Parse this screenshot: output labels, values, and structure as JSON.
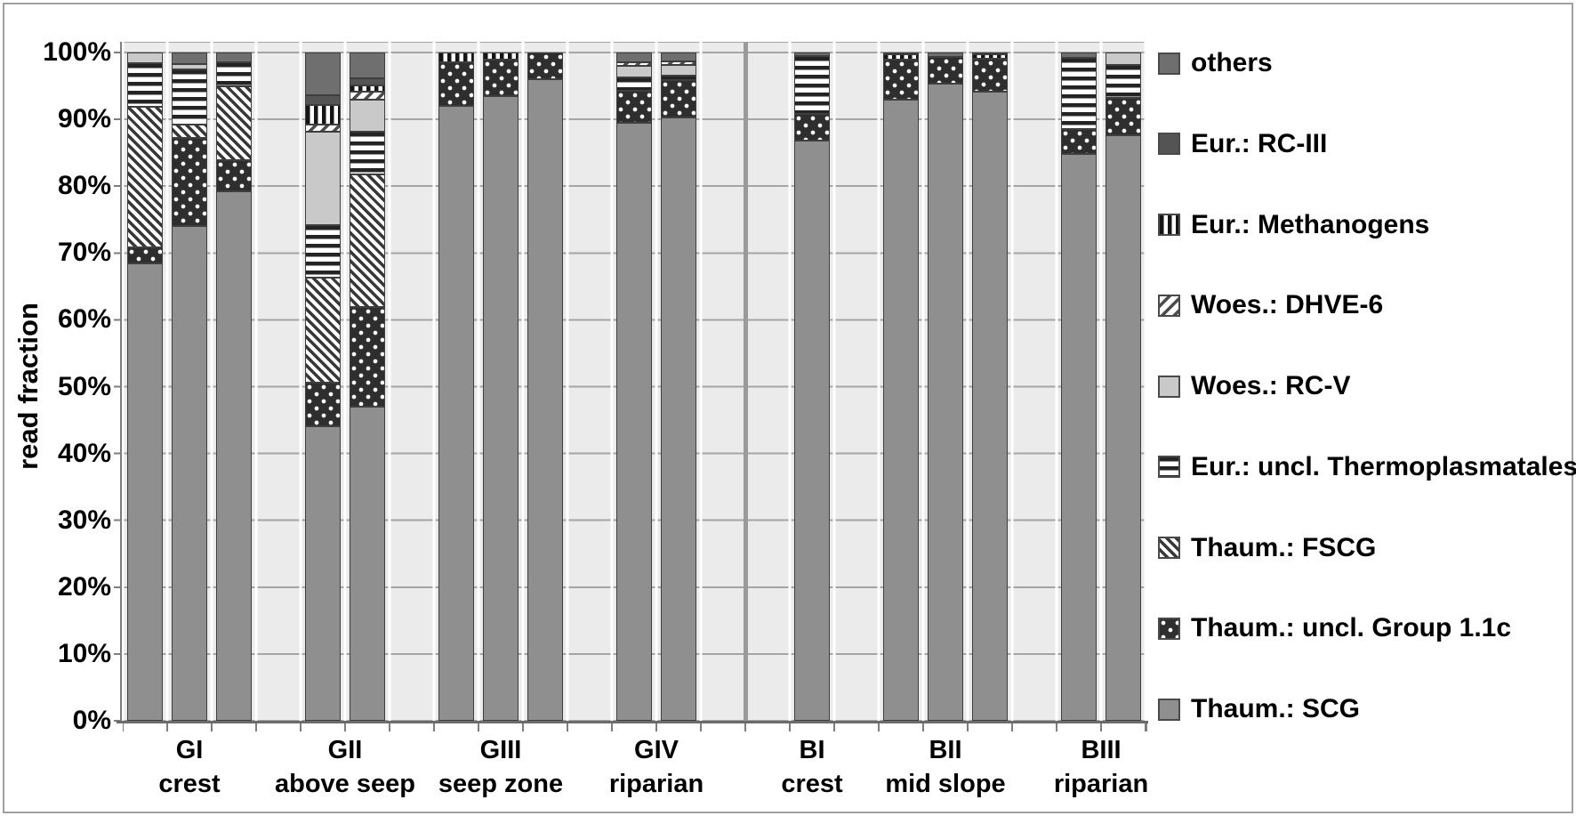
{
  "chart_data": {
    "type": "bar",
    "stacked": true,
    "unit": "percent",
    "ylabel": "read fraction",
    "ylim": [
      0,
      100
    ],
    "grid": true,
    "legend_position": "right",
    "yticks": [
      "0%",
      "10%",
      "20%",
      "30%",
      "40%",
      "50%",
      "60%",
      "70%",
      "80%",
      "90%",
      "100%"
    ],
    "legend": [
      {
        "key": "others",
        "label": "others"
      },
      {
        "key": "rciii",
        "label": "Eur.: RC-III"
      },
      {
        "key": "methano",
        "label": "Eur.: Methanogens"
      },
      {
        "key": "dhve6",
        "label": "Woes.: DHVE-6"
      },
      {
        "key": "rcv",
        "label": "Woes.: RC-V"
      },
      {
        "key": "thermo",
        "label": "Eur.: uncl. Thermoplasmatales"
      },
      {
        "key": "fscg",
        "label": "Thaum.: FSCG"
      },
      {
        "key": "g11c",
        "label": "Thaum.: uncl. Group 1.1c"
      },
      {
        "key": "scg",
        "label": "Thaum.: SCG"
      }
    ],
    "colors": {
      "scg": "#8f8f8f",
      "others": "#6f6f6f",
      "rciii": "#545454",
      "rcv": "#c9c9c9",
      "g11c_background": "#2e2e2e",
      "pattern_dark": "#242424",
      "pattern_light": "#ffffff",
      "plot_background": "#ebebeb",
      "gridline": "#a5a5a5"
    },
    "group_divider_after": "GIV",
    "groups": [
      {
        "id": "GI",
        "label": [
          "GI",
          "crest"
        ],
        "bars": [
          {
            "segments": {
              "scg": 68.5,
              "g11c": 2.4,
              "fscg": 21.0,
              "thermo": 6.5,
              "rcv": 1.6
            }
          },
          {
            "segments": {
              "scg": 74.1,
              "g11c": 13.1,
              "fscg": 2.0,
              "thermo": 8.3,
              "rcv": 0.8,
              "others": 1.7
            }
          },
          {
            "segments": {
              "scg": 79.2,
              "g11c": 4.7,
              "fscg": 11.0,
              "thermo": 3.6,
              "others": 1.5
            }
          }
        ]
      },
      {
        "id": "GII",
        "label": [
          "GII",
          "above seep"
        ],
        "bars": [
          {
            "segments": {
              "scg": 44.1,
              "g11c": 6.5,
              "fscg": 15.7,
              "thermo": 7.9,
              "rcv": 13.9,
              "dhve6": 1.1,
              "methano": 2.9,
              "rciii": 1.5,
              "others": 6.4
            }
          },
          {
            "segments": {
              "scg": 47.0,
              "g11c": 14.9,
              "fscg": 19.9,
              "thermo": 6.4,
              "rcv": 4.7,
              "dhve6": 1.3,
              "methano": 0.9,
              "rciii": 1.0,
              "others": 3.9
            }
          }
        ]
      },
      {
        "id": "GIII",
        "label": [
          "GIII",
          "seep zone"
        ],
        "bars": [
          {
            "segments": {
              "scg": 92.0,
              "g11c": 6.5,
              "methano": 1.5
            }
          },
          {
            "segments": {
              "scg": 93.5,
              "g11c": 5.4,
              "methano": 1.1
            }
          },
          {
            "segments": {
              "scg": 96.0,
              "g11c": 4.0
            }
          }
        ]
      },
      {
        "id": "GIV",
        "label": [
          "GIV",
          "riparian"
        ],
        "bars": [
          {
            "segments": {
              "scg": 89.5,
              "g11c": 4.8,
              "thermo": 2.0,
              "rcv": 1.7,
              "dhve6": 0.6,
              "others": 1.4
            }
          },
          {
            "segments": {
              "scg": 90.3,
              "g11c": 5.6,
              "thermo": 0.7,
              "rcv": 1.5,
              "dhve6": 0.6,
              "others": 1.3
            }
          }
        ]
      },
      {
        "id": "BI",
        "label": [
          "BI",
          "crest"
        ],
        "bars": [
          {
            "segments": {
              "scg": 86.8,
              "g11c": 4.0,
              "thermo": 8.7,
              "others": 0.5
            }
          }
        ]
      },
      {
        "id": "BII",
        "label": [
          "BII",
          "mid slope"
        ],
        "bars": [
          {
            "segments": {
              "scg": 92.9,
              "g11c": 6.1,
              "methano": 0.7,
              "others": 0.3
            }
          },
          {
            "segments": {
              "scg": 95.4,
              "g11c": 4.0,
              "others": 0.6
            }
          },
          {
            "segments": {
              "scg": 94.2,
              "g11c": 4.9,
              "methano": 0.6,
              "others": 0.3
            }
          }
        ]
      },
      {
        "id": "BIII",
        "label": [
          "BIII",
          "riparian"
        ],
        "bars": [
          {
            "segments": {
              "scg": 84.8,
              "g11c": 3.7,
              "thermo": 10.7,
              "others": 0.8
            }
          },
          {
            "segments": {
              "scg": 87.6,
              "g11c": 5.6,
              "thermo": 5.0,
              "rcv": 1.8
            }
          }
        ]
      }
    ]
  }
}
